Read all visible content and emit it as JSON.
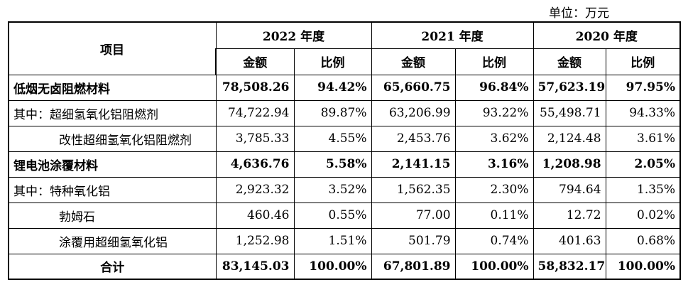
{
  "unit": "单位：万元",
  "header": {
    "item": "项目",
    "years": [
      "2022 年度",
      "2021 年度",
      "2020 年度"
    ],
    "amount": "金额",
    "ratio": "比例"
  },
  "rows": [
    {
      "label": "低烟无卤阻燃材料",
      "style": "bold",
      "values": [
        "78,508.26",
        "94.42%",
        "65,660.75",
        "96.84%",
        "57,623.19",
        "97.95%"
      ]
    },
    {
      "label": "其中：超细氢氧化铝阻燃剂",
      "style": "normal",
      "values": [
        "74,722.94",
        "89.87%",
        "63,206.99",
        "93.22%",
        "55,498.71",
        "94.33%"
      ]
    },
    {
      "label": "改性超细氢氧化铝阻燃剂",
      "style": "indent",
      "values": [
        "3,785.33",
        "4.55%",
        "2,453.76",
        "3.62%",
        "2,124.48",
        "3.61%"
      ]
    },
    {
      "label": "锂电池涂覆材料",
      "style": "bold",
      "values": [
        "4,636.76",
        "5.58%",
        "2,141.15",
        "3.16%",
        "1,208.98",
        "2.05%"
      ]
    },
    {
      "label": "其中：特种氧化铝",
      "style": "normal",
      "values": [
        "2,923.32",
        "3.52%",
        "1,562.35",
        "2.30%",
        "794.64",
        "1.35%"
      ]
    },
    {
      "label": "勃姆石",
      "style": "indent",
      "values": [
        "460.46",
        "0.55%",
        "77.00",
        "0.11%",
        "12.72",
        "0.02%"
      ]
    },
    {
      "label": "涂覆用超细氢氧化铝",
      "style": "indent",
      "values": [
        "1,252.98",
        "1.51%",
        "501.79",
        "0.74%",
        "401.63",
        "0.68%"
      ]
    },
    {
      "label": "合计",
      "style": "total",
      "values": [
        "83,145.03",
        "100.00%",
        "67,801.89",
        "100.00%",
        "58,832.17",
        "100.00%"
      ]
    }
  ]
}
